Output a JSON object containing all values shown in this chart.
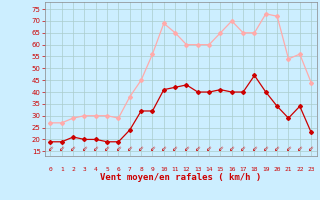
{
  "hours": [
    0,
    1,
    2,
    3,
    4,
    5,
    6,
    7,
    8,
    9,
    10,
    11,
    12,
    13,
    14,
    15,
    16,
    17,
    18,
    19,
    20,
    21,
    22,
    23
  ],
  "vent_moyen": [
    19,
    19,
    21,
    20,
    20,
    19,
    19,
    24,
    32,
    32,
    41,
    42,
    43,
    40,
    40,
    41,
    40,
    40,
    47,
    40,
    34,
    29,
    34,
    23
  ],
  "rafales": [
    27,
    27,
    29,
    30,
    30,
    30,
    29,
    38,
    45,
    56,
    69,
    65,
    60,
    60,
    60,
    65,
    70,
    65,
    65,
    73,
    72,
    54,
    56,
    44
  ],
  "color_moyen": "#cc0000",
  "color_rafales": "#ffaaaa",
  "bg_color": "#cceeff",
  "grid_color": "#aacccc",
  "xlabel": "Vent moyen/en rafales ( km/h )",
  "xlabel_color": "#cc0000",
  "tick_color": "#cc0000",
  "ytick_color": "#cc0000",
  "yticks": [
    15,
    20,
    25,
    30,
    35,
    40,
    45,
    50,
    55,
    60,
    65,
    70,
    75
  ],
  "ylim": [
    13,
    78
  ],
  "xlim": [
    -0.5,
    23.5
  ]
}
